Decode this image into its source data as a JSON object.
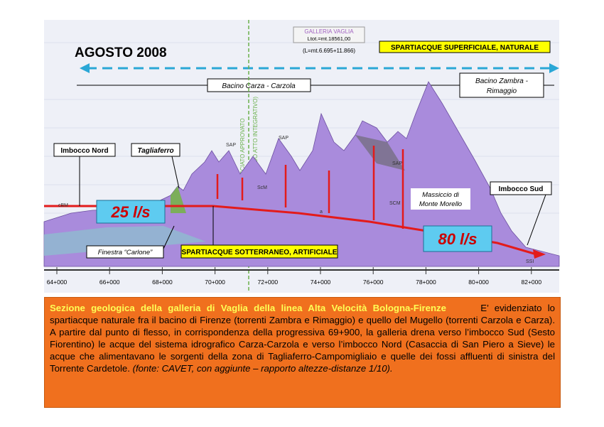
{
  "header": {
    "title": "AGOSTO 2008"
  },
  "tunnel": {
    "name": "GALLERIA VAGLIA",
    "length": "Ltot.=mt.18561,00",
    "split": "(L=mt.6.695+11.866)"
  },
  "labels": {
    "surface_divide": "SPARTIACQUE SUPERFICIALE, NATURALE",
    "underground_divide": "SPARTIACQUE SOTTERRANEO,  ARTIFICIALE",
    "basin_left": "Bacino Carza - Carzola",
    "basin_right_1": "Bacino Zambra -",
    "basin_right_2": "Rimaggio",
    "limit_1": "LIMITE TRACCIATO APPROVATO",
    "limit_2": "(SECONDO ATTO INTEGRATIVO)",
    "north_portal": "Imbocco Nord",
    "tagliaferro": "Tagliaferro",
    "south_portal": "Imbocco Sud",
    "flow_north": "25 l/s",
    "flow_south": "80 l/s",
    "massif_1": "Massiccio di",
    "massif_2": "Monte Morello",
    "window": "Finestra “Carlone”",
    "geo": [
      "SAP",
      "SAP",
      "SAP",
      "ScM",
      "SCM",
      "cBM",
      "a",
      "SSI"
    ]
  },
  "axis": {
    "ticks": [
      "64+000",
      "66+000",
      "68+000",
      "70+000",
      "72+000",
      "74+000",
      "76+000",
      "78+000",
      "80+000",
      "82+000"
    ]
  },
  "caption": {
    "title": "Sezione geologica della galleria di Vaglia della linea Alta Velocità Bologna-Firenze",
    "body": "E’ evidenziato lo spartiacque naturale fra il bacino di Firenze (torrenti Zambra e Rimaggio) e quello del Mugello (torrenti Carzola  e Carza).  A partire dal punto di flesso, in corrispondenza della  progressiva 69+900, la galleria drena verso l’imbocco Sud (Sesto Fiorentino) le acque del sistema idrografico Carza-Carzola e verso l’imbocco Nord (Casaccia di San Piero a Sieve) le acque che alimentavano le sorgenti della zona di Tagliaferro-Campomigliaio e quelle dei fossi affluenti di sinistra del Torrente Cardetole.",
    "source": "(fonte: CAVET, con aggiunte – rapporto altezze-distanze 1/10)."
  }
}
